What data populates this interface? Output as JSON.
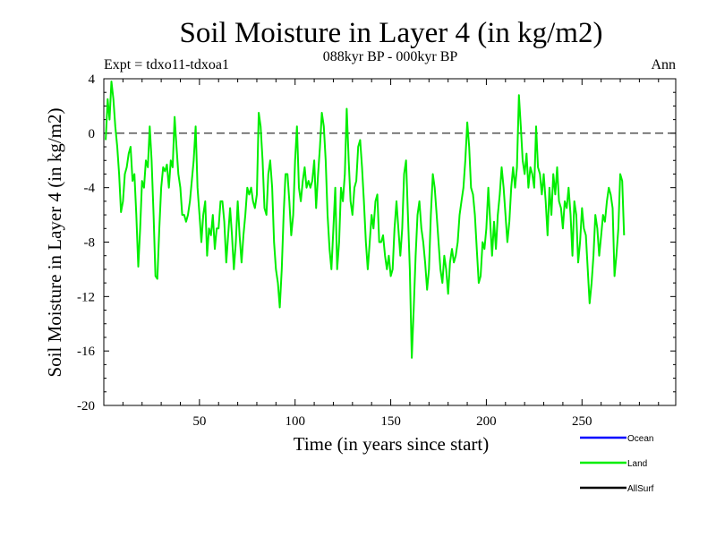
{
  "chart_data": {
    "type": "line",
    "title": "Soil Moisture in Layer 4 (in kg/m2)",
    "subtitle": "088kyr BP - 000kyr BP",
    "expt_label": "Expt = tdxo11-tdxoa1",
    "season_label": "Ann",
    "xlabel": "Time (in years since start)",
    "ylabel": "Soil Moisture in Layer 4 (in kg/m2)",
    "xlim": [
      0,
      299
    ],
    "ylim": [
      -20,
      4
    ],
    "xticks": [
      50,
      100,
      150,
      200,
      250
    ],
    "xtick_labels": [
      "50",
      "100",
      "150",
      "200",
      "250"
    ],
    "yticks": [
      4,
      0,
      -4,
      -8,
      -12,
      -16,
      -20
    ],
    "ytick_labels": [
      "4",
      "0",
      "-4",
      "-8",
      "-12",
      "-16",
      "-20"
    ],
    "zero_line": 0,
    "legend": [
      {
        "name": "Ocean",
        "color": "#0000ff"
      },
      {
        "name": "Land",
        "color": "#00ee00"
      },
      {
        "name": "AllSurf",
        "color": "#000000"
      }
    ],
    "series": [
      {
        "name": "Land",
        "color": "#00ee00",
        "x_start": 1,
        "x_step": 1,
        "values": [
          -0.5,
          2.5,
          1.0,
          3.8,
          2.5,
          0.5,
          -1.0,
          -3.0,
          -5.8,
          -5.0,
          -3.0,
          -2.5,
          -1.5,
          -1.0,
          -3.5,
          -3.0,
          -6.0,
          -9.8,
          -7.0,
          -3.5,
          -4.0,
          -2.0,
          -2.5,
          0.5,
          -2.0,
          -6.0,
          -10.5,
          -10.7,
          -7.0,
          -4.0,
          -2.5,
          -2.8,
          -2.3,
          -4.0,
          -2.0,
          -2.5,
          1.2,
          -1.0,
          -3.0,
          -4.0,
          -6.0,
          -6.0,
          -6.5,
          -6.0,
          -5.0,
          -3.5,
          -2.0,
          0.5,
          -4.0,
          -6.0,
          -8.0,
          -6.0,
          -5.0,
          -9.0,
          -7.0,
          -7.5,
          -6.0,
          -8.5,
          -7.0,
          -7.0,
          -5.0,
          -5.0,
          -6.5,
          -9.5,
          -7.5,
          -5.5,
          -7.5,
          -10.0,
          -8.0,
          -5.0,
          -7.5,
          -9.5,
          -7.5,
          -6.0,
          -4.0,
          -4.5,
          -4.0,
          -5.0,
          -5.5,
          -4.5,
          1.5,
          0.5,
          -2.0,
          -5.5,
          -6.0,
          -3.0,
          -2.0,
          -4.0,
          -8.0,
          -10.0,
          -11.0,
          -12.8,
          -10.0,
          -6.0,
          -3.0,
          -3.0,
          -5.0,
          -7.5,
          -6.0,
          -2.0,
          0.5,
          -4.0,
          -5.0,
          -3.5,
          -2.5,
          -4.0,
          -3.5,
          -4.0,
          -3.5,
          -2.0,
          -5.5,
          -3.0,
          -1.0,
          1.5,
          0.5,
          -2.0,
          -6.0,
          -8.5,
          -10.0,
          -7.0,
          -4.0,
          -10.0,
          -8.0,
          -4.0,
          -5.0,
          -3.0,
          1.8,
          -2.0,
          -5.0,
          -6.0,
          -4.0,
          -3.5,
          -1.0,
          -0.5,
          -2.5,
          -5.0,
          -8.0,
          -10.0,
          -8.0,
          -6.0,
          -7.0,
          -5.0,
          -4.5,
          -8.0,
          -8.0,
          -7.5,
          -9.0,
          -10.0,
          -9.0,
          -10.5,
          -10.0,
          -7.0,
          -5.0,
          -7.0,
          -9.0,
          -7.0,
          -3.0,
          -2.0,
          -6.0,
          -10.0,
          -16.5,
          -13.0,
          -9.0,
          -6.0,
          -5.0,
          -7.0,
          -8.0,
          -9.5,
          -11.5,
          -10.0,
          -6.0,
          -3.0,
          -4.0,
          -6.0,
          -8.0,
          -10.0,
          -11.0,
          -9.0,
          -10.0,
          -11.8,
          -9.5,
          -8.5,
          -9.5,
          -9.0,
          -8.0,
          -6.0,
          -5.0,
          -4.0,
          -2.0,
          0.8,
          -1.0,
          -4.0,
          -4.5,
          -6.0,
          -8.5,
          -11.0,
          -10.5,
          -8.0,
          -8.5,
          -7.0,
          -4.0,
          -6.5,
          -9.0,
          -6.5,
          -8.5,
          -6.0,
          -4.5,
          -2.5,
          -4.0,
          -6.0,
          -8.0,
          -6.5,
          -4.0,
          -2.5,
          -4.0,
          -2.5,
          2.8,
          0.5,
          -2.0,
          -3.0,
          -1.5,
          -4.0,
          -2.5,
          -3.0,
          -4.0,
          0.5,
          -2.5,
          -3.0,
          -4.5,
          -3.0,
          -5.0,
          -7.5,
          -4.0,
          -6.0,
          -3.0,
          -4.5,
          -2.5,
          -5.0,
          -5.5,
          -7.0,
          -5.0,
          -5.5,
          -4.0,
          -6.0,
          -9.0,
          -5.0,
          -6.0,
          -9.5,
          -8.0,
          -5.5,
          -7.0,
          -7.5,
          -10.0,
          -12.5,
          -11.0,
          -9.0,
          -6.0,
          -7.0,
          -9.0,
          -7.5,
          -6.0,
          -6.5,
          -5.0,
          -4.0,
          -4.5,
          -5.5,
          -10.5,
          -9.0,
          -7.0,
          -3.0,
          -3.5,
          -7.5
        ]
      }
    ]
  }
}
